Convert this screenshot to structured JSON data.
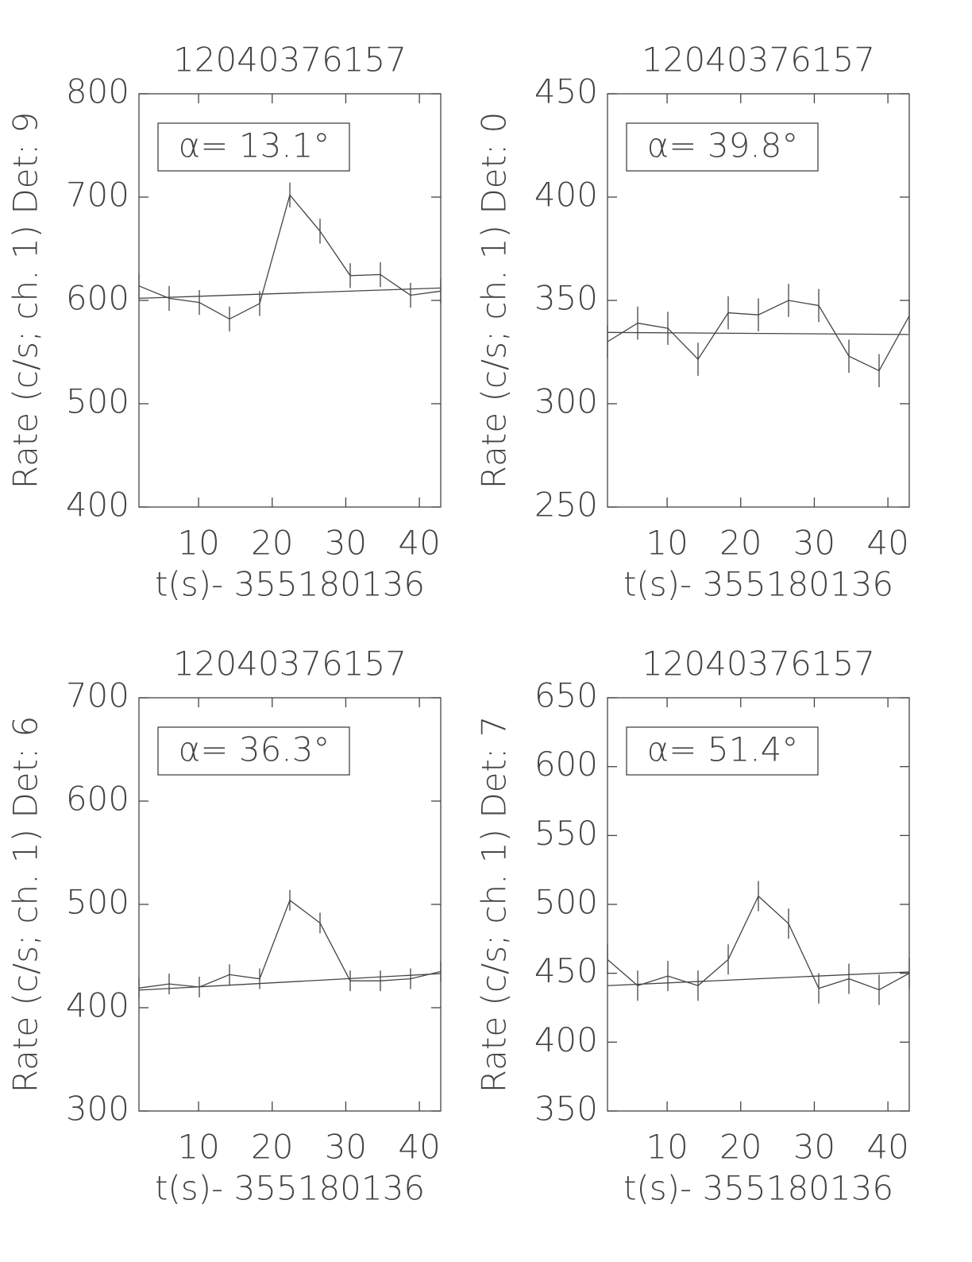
{
  "chart_data": [
    {
      "type": "line",
      "title": "12040376157",
      "ylabel": "Rate (c/s; ch. 1) Det: 9",
      "xlabel": "t(s)- 355180136",
      "annotation": "α= 13.1°",
      "x": [
        1.9,
        6.0,
        10.1,
        14.2,
        18.3,
        22.4,
        26.5,
        30.6,
        34.7,
        38.8,
        42.9
      ],
      "values": [
        614,
        602,
        598,
        582,
        597,
        702,
        667,
        624,
        625,
        605,
        609
      ],
      "errors": [
        12,
        12,
        12,
        12,
        12,
        12,
        12,
        12,
        12,
        12,
        12
      ],
      "fit": {
        "x": [
          1.9,
          42.9
        ],
        "values": [
          602,
          612
        ]
      },
      "xlim": [
        1.9,
        42.9
      ],
      "xticks": [
        10,
        20,
        30,
        40
      ],
      "ylim": [
        400,
        800
      ],
      "yticks": [
        400,
        500,
        600,
        700,
        800
      ],
      "color": "#333333"
    },
    {
      "type": "line",
      "title": "12040376157",
      "ylabel": "Rate (c/s; ch. 1) Det: 0",
      "xlabel": "t(s)- 355180136",
      "annotation": "α= 39.8°",
      "x": [
        1.9,
        6.0,
        10.1,
        14.2,
        18.3,
        22.4,
        26.5,
        30.6,
        34.7,
        38.8,
        42.9
      ],
      "values": [
        330,
        339,
        336.5,
        321.5,
        344,
        343,
        350,
        347.5,
        323,
        316,
        342.5
      ],
      "errors": [
        8,
        8,
        8,
        8,
        8,
        8,
        8,
        8,
        8,
        8,
        8
      ],
      "fit": {
        "x": [
          1.9,
          42.9
        ],
        "values": [
          334.5,
          333.5
        ]
      },
      "xlim": [
        1.9,
        42.9
      ],
      "xticks": [
        10,
        20,
        30,
        40
      ],
      "ylim": [
        250,
        450
      ],
      "yticks": [
        250,
        300,
        350,
        400,
        450
      ],
      "color": "#333333"
    },
    {
      "type": "line",
      "title": "12040376157",
      "ylabel": "Rate (c/s; ch. 1) Det: 6",
      "xlabel": "t(s)- 355180136",
      "annotation": "α= 36.3°",
      "x": [
        1.9,
        6.0,
        10.1,
        14.2,
        18.3,
        22.4,
        26.5,
        30.6,
        34.7,
        38.8,
        42.9
      ],
      "values": [
        419,
        423,
        420,
        432,
        428,
        504,
        482,
        426,
        426,
        428,
        435
      ],
      "errors": [
        10,
        10,
        10,
        10,
        10,
        10,
        10,
        10,
        10,
        10,
        10
      ],
      "fit": {
        "x": [
          1.9,
          42.9
        ],
        "values": [
          417,
          433
        ]
      },
      "xlim": [
        1.9,
        42.9
      ],
      "xticks": [
        10,
        20,
        30,
        40
      ],
      "ylim": [
        300,
        700
      ],
      "yticks": [
        300,
        400,
        500,
        600,
        700
      ],
      "color": "#333333"
    },
    {
      "type": "line",
      "title": "12040376157",
      "ylabel": "Rate (c/s; ch. 1) Det: 7",
      "xlabel": "t(s)- 355180136",
      "annotation": "α= 51.4°",
      "x": [
        1.9,
        6.0,
        10.1,
        14.2,
        18.3,
        22.4,
        26.5,
        30.6,
        34.7,
        38.8,
        42.9
      ],
      "values": [
        460,
        441,
        448,
        441,
        460,
        506,
        486,
        439,
        446,
        438,
        450
      ],
      "errors": [
        11,
        11,
        11,
        11,
        11,
        11,
        11,
        11,
        11,
        11,
        11
      ],
      "fit": {
        "x": [
          1.9,
          42.9
        ],
        "values": [
          441,
          451
        ]
      },
      "xlim": [
        1.9,
        42.9
      ],
      "xticks": [
        10,
        20,
        30,
        40
      ],
      "ylim": [
        350,
        650
      ],
      "yticks": [
        350,
        400,
        450,
        500,
        550,
        600,
        650
      ],
      "color": "#333333"
    }
  ]
}
